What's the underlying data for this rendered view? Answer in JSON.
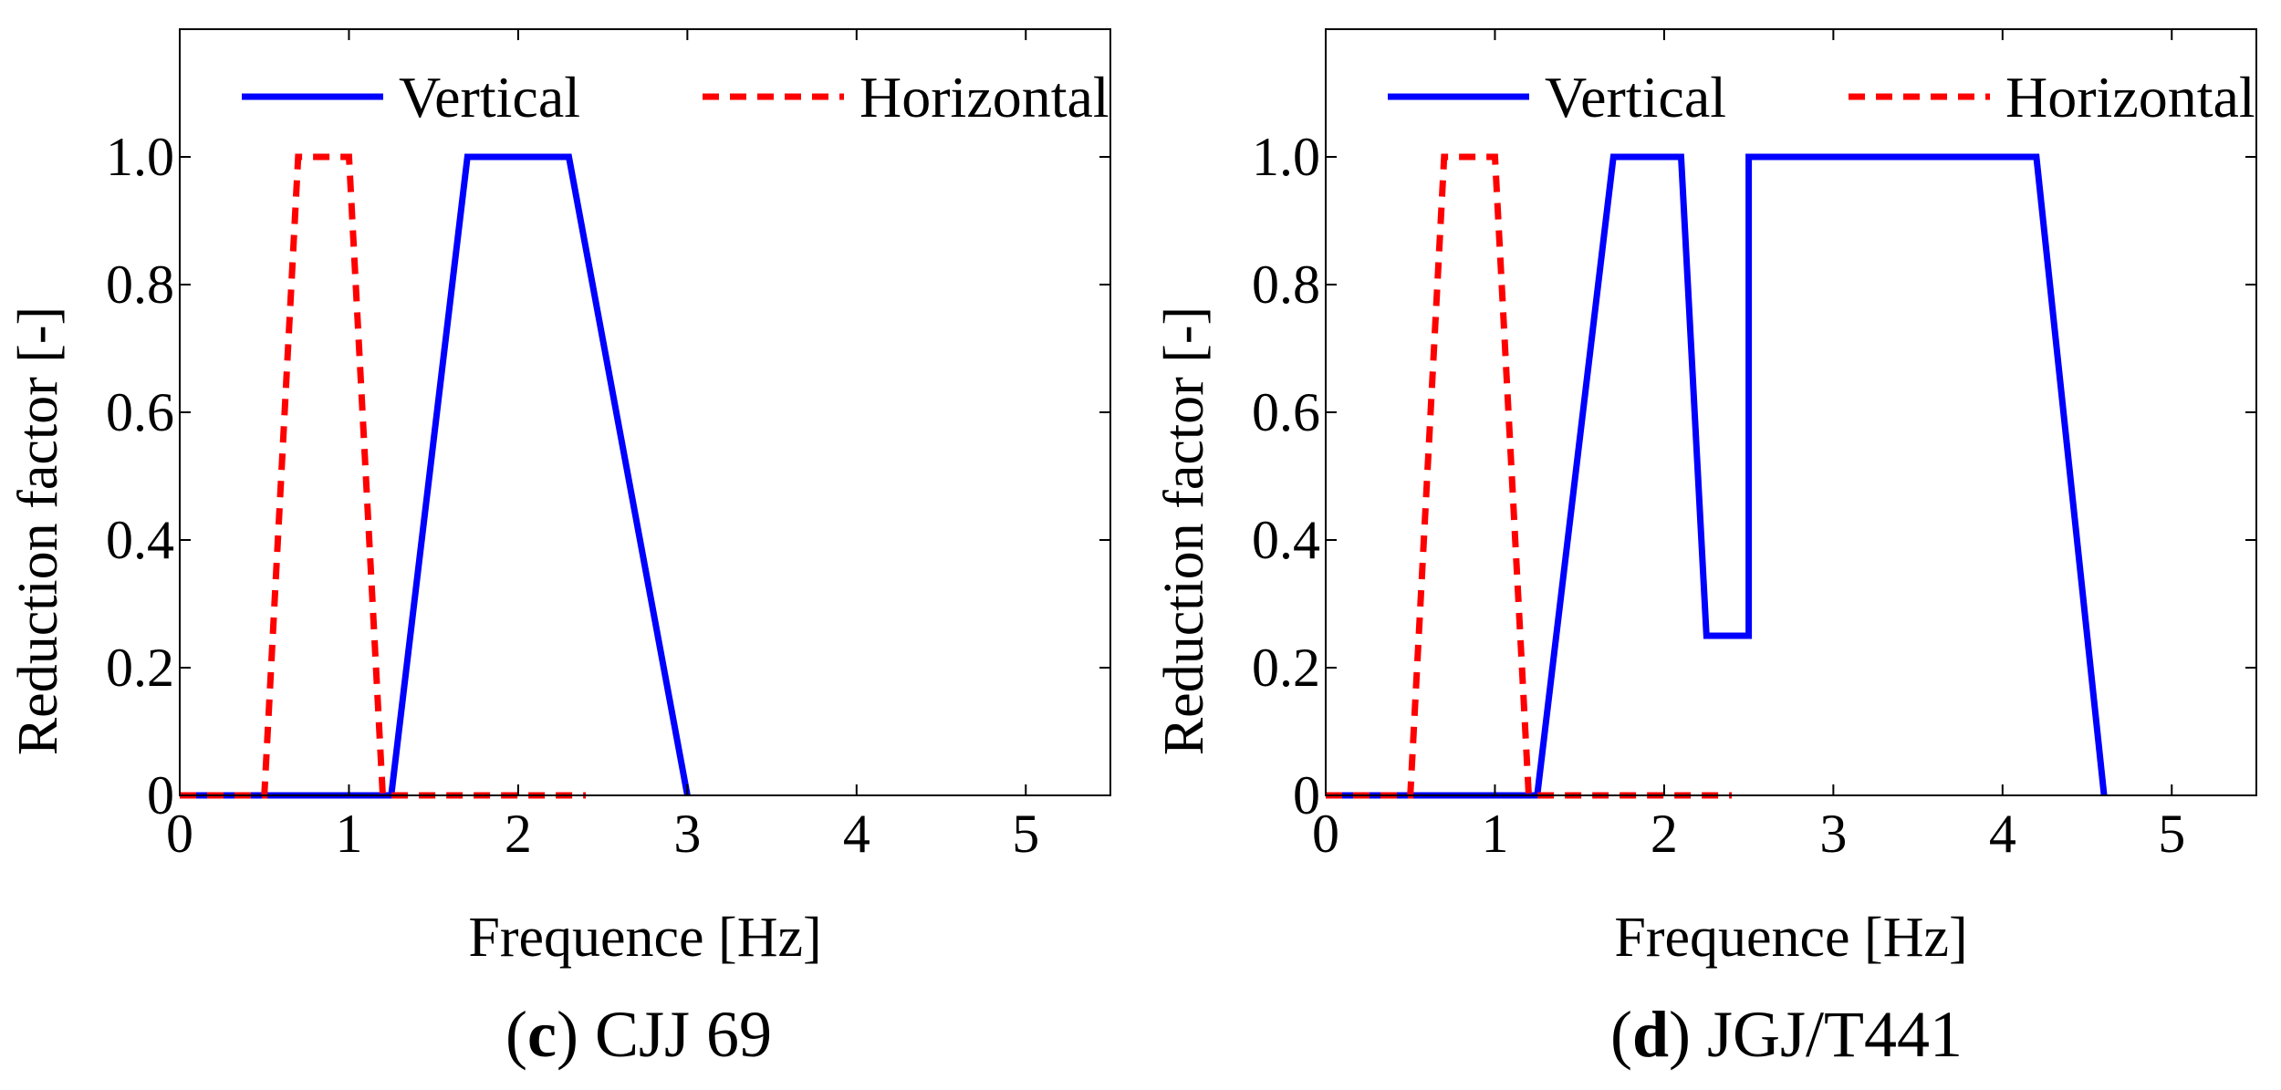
{
  "chart_data": [
    {
      "type": "line",
      "caption_letter": "c",
      "caption_text": "CJJ 69",
      "xlabel": "Frequence [Hz]",
      "ylabel": "Reduction factor [-]",
      "xlim": [
        0,
        5.5
      ],
      "ylim": [
        0,
        1.2
      ],
      "x_ticks": [
        0,
        1,
        2,
        3,
        4,
        5
      ],
      "x_tick_labels": [
        "0",
        "1",
        "2",
        "3",
        "4",
        "5"
      ],
      "y_ticks": [
        0,
        0.2,
        0.4,
        0.6,
        0.8,
        1.0
      ],
      "y_tick_labels": [
        "0",
        "0.2",
        "0.4",
        "0.6",
        "0.8",
        "1.0"
      ],
      "grid": false,
      "legend_position": "top",
      "series": [
        {
          "name": "Vertical",
          "style": "solid",
          "color": "#0000FF",
          "x": [
            0,
            1.25,
            1.7,
            2.3,
            3.0
          ],
          "y": [
            0,
            0,
            1.0,
            1.0,
            0
          ]
        },
        {
          "name": "Horizontal",
          "style": "dashed",
          "color": "#FF0000",
          "x": [
            0,
            0.5,
            0.7,
            1.0,
            1.2,
            2.4
          ],
          "y": [
            0,
            0,
            1.0,
            1.0,
            0,
            0
          ]
        }
      ]
    },
    {
      "type": "line",
      "caption_letter": "d",
      "caption_text": "JGJ/T441",
      "xlabel": "Frequence [Hz]",
      "ylabel": "Reduction factor [-]",
      "xlim": [
        0,
        5.5
      ],
      "ylim": [
        0,
        1.2
      ],
      "x_ticks": [
        0,
        1,
        2,
        3,
        4,
        5
      ],
      "x_tick_labels": [
        "0",
        "1",
        "2",
        "3",
        "4",
        "5"
      ],
      "y_ticks": [
        0,
        0.2,
        0.4,
        0.6,
        0.8,
        1.0
      ],
      "y_tick_labels": [
        "0",
        "0.2",
        "0.4",
        "0.6",
        "0.8",
        "1.0"
      ],
      "grid": false,
      "legend_position": "top",
      "series": [
        {
          "name": "Vertical",
          "style": "solid",
          "color": "#0000FF",
          "x": [
            0,
            1.25,
            1.7,
            2.1,
            2.25,
            2.5,
            2.5,
            4.2,
            4.6
          ],
          "y": [
            0,
            0,
            1.0,
            1.0,
            0.25,
            0.25,
            1.0,
            1.0,
            0
          ]
        },
        {
          "name": "Horizontal",
          "style": "dashed",
          "color": "#FF0000",
          "x": [
            0,
            0.5,
            0.7,
            1.0,
            1.2,
            2.4
          ],
          "y": [
            0,
            0,
            1.0,
            1.0,
            0,
            0
          ]
        }
      ]
    }
  ]
}
